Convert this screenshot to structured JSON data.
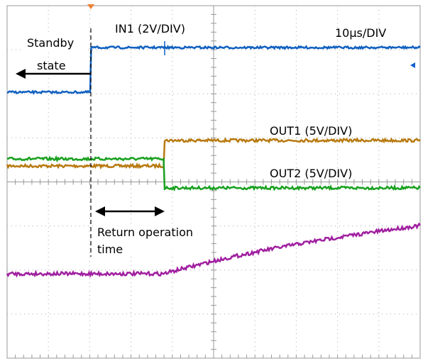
{
  "labels": {
    "standby": "Standby",
    "state": "state",
    "in1": "IN1 (2V/DIV)",
    "timebase": "10μs/DIV",
    "out1": "OUT1 (5V/DIV)",
    "out2": "OUT2 (5V/DIV)",
    "return_line1": "Return operation",
    "return_line2": "time"
  }
}
